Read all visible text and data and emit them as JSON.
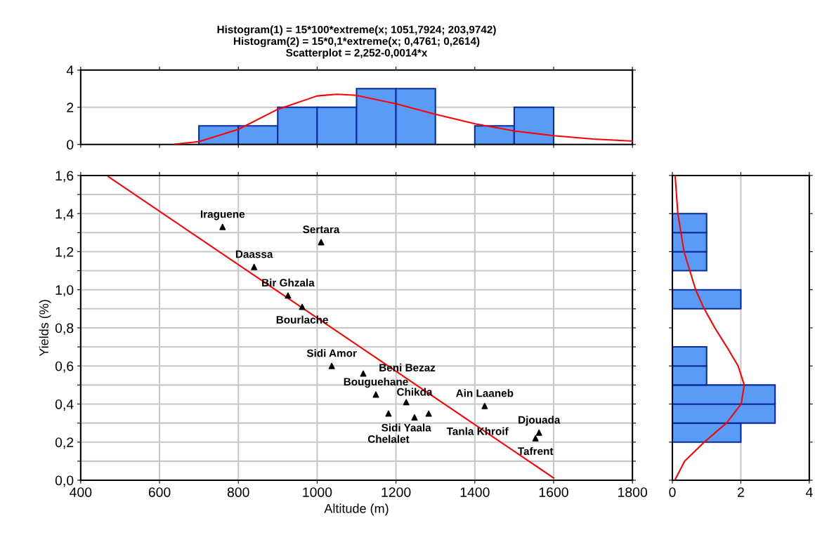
{
  "chart_data": [
    {
      "type": "histogram",
      "title": "Histogram(1) = 15*100*extreme(x; 1051,7924; 203,9742)\nHistogram(2) = 15*0,1*extreme(x; 0,4761; 0,2614)\nScatterplot = 2,252-0,0014*x",
      "bins": [
        700,
        800,
        900,
        1000,
        1100,
        1200,
        1300,
        1400,
        1500,
        1600
      ],
      "series": [
        {
          "color": "#5a9cf5",
          "values": [
            1,
            1,
            2,
            2,
            3,
            3,
            0,
            1,
            2
          ]
        },
        {
          "type": "line",
          "color": "#ff0000",
          "x": [
            640,
            700,
            800,
            900,
            1000,
            1050,
            1100,
            1200,
            1300,
            1400,
            1500,
            1600,
            1700,
            1800
          ],
          "values": [
            0.02,
            0.15,
            0.81,
            1.89,
            2.61,
            2.7,
            2.64,
            2.19,
            1.62,
            1.11,
            0.73,
            0.47,
            0.29,
            0.18
          ]
        }
      ],
      "xlim": [
        400,
        1800
      ],
      "xticks": [
        {
          "value": 400,
          "label": null
        },
        {
          "value": 600,
          "label": null
        },
        {
          "value": 800,
          "label": null
        },
        {
          "value": 1000,
          "label": null
        },
        {
          "value": 1200,
          "label": null
        },
        {
          "value": 1400,
          "label": null
        },
        {
          "value": 1600,
          "label": null
        },
        {
          "value": 1800,
          "label": null
        }
      ],
      "ylim": [
        0,
        4
      ],
      "yticks": [
        0,
        2,
        4
      ],
      "grid": "y",
      "tick_labels": "y"
    },
    {
      "type": "scatter",
      "xlabel": "Altitude (m)",
      "ylabel": "Yields (%)",
      "series": [
        {
          "color": "#000000",
          "x": [
            760,
            1010,
            840,
            926,
            962,
            1037,
            1117,
            1149,
            1226,
            1181,
            1283,
            1247,
            1425,
            1563,
            1554
          ],
          "values": [
            1.33,
            1.25,
            1.12,
            0.97,
            0.91,
            0.6,
            0.56,
            0.45,
            0.41,
            0.35,
            0.35,
            0.33,
            0.39,
            0.25,
            0.22
          ]
        },
        {
          "type": "line",
          "marker": "none",
          "color": "#ff0000",
          "x": [
            470,
            1600
          ],
          "values": [
            1.594,
            0.012
          ]
        }
      ],
      "annotations": [
        {
          "text": "Iraguene",
          "x": 760,
          "y": 1.33
        },
        {
          "text": "Sertara",
          "x": 1010,
          "y": 1.25
        },
        {
          "text": "Daassa",
          "x": 840,
          "y": 1.12
        },
        {
          "text": "Bir Ghzala",
          "x": 926,
          "y": 0.97
        },
        {
          "text": "Bourlache",
          "x": 962,
          "y": 0.91
        },
        {
          "text": "Sidi Amor",
          "x": 1037,
          "y": 0.6
        },
        {
          "text": "Beni Bezaz",
          "x": 1117,
          "y": 0.56
        },
        {
          "text": "Bouguehane",
          "x": 1149,
          "y": 0.45
        },
        {
          "text": "Sidi Yaala",
          "x": 1226,
          "y": 0.41
        },
        {
          "text": "Chelalet",
          "x": 1181,
          "y": 0.35
        },
        {
          "text": "Tanla Khroif",
          "x": 1283,
          "y": 0.35
        },
        {
          "text": "Chikda",
          "x": 1247,
          "y": 0.33
        },
        {
          "text": "Ain Laaneb",
          "x": 1425,
          "y": 0.39
        },
        {
          "text": "Djouada",
          "x": 1563,
          "y": 0.25
        },
        {
          "text": "Tafrent",
          "x": 1554,
          "y": 0.22
        }
      ],
      "marker": "triangle",
      "xlim": [
        400,
        1800
      ],
      "xticks": [
        400,
        600,
        800,
        1000,
        1200,
        1400,
        1600,
        1800
      ],
      "ylim": [
        0,
        1.6
      ],
      "yticks": [
        {
          "value": 0,
          "label": "0,0"
        },
        {
          "value": 0.1,
          "label": null
        },
        {
          "value": 0.2,
          "label": "0,2"
        },
        {
          "value": 0.3,
          "label": null
        },
        {
          "value": 0.4,
          "label": "0,4"
        },
        {
          "value": 0.5,
          "label": null
        },
        {
          "value": 0.6,
          "label": "0,6"
        },
        {
          "value": 0.7,
          "label": null
        },
        {
          "value": 0.8,
          "label": "0,8"
        },
        {
          "value": 0.9,
          "label": null
        },
        {
          "value": 1.0,
          "label": "1,0"
        },
        {
          "value": 1.1,
          "label": null
        },
        {
          "value": 1.2,
          "label": "1,2"
        },
        {
          "value": 1.3,
          "label": null
        },
        {
          "value": 1.4,
          "label": "1,4"
        },
        {
          "value": 1.5,
          "label": null
        },
        {
          "value": 1.6,
          "label": "1,6"
        }
      ],
      "grid": true
    },
    {
      "type": "histogram",
      "orientation": "horizontal",
      "bins": [
        0.2,
        0.3,
        0.4,
        0.5,
        0.6,
        0.7,
        0.8,
        0.9,
        1.0,
        1.1,
        1.2,
        1.3,
        1.4
      ],
      "series": [
        {
          "color": "#5a9cf5",
          "values": [
            2,
            3,
            3,
            1,
            1,
            0,
            0,
            2,
            0,
            1,
            1,
            1
          ]
        },
        {
          "type": "line",
          "color": "#ff0000",
          "x": [
            0,
            0.1,
            0.2,
            0.3,
            0.4,
            0.5,
            0.6,
            0.7,
            0.8,
            0.9,
            1.0,
            1.2,
            1.4,
            1.6
          ],
          "values": [
            0.07,
            0.36,
            0.93,
            1.58,
            2.01,
            2.1,
            1.92,
            1.59,
            1.24,
            0.93,
            0.68,
            0.34,
            0.16,
            0.08
          ]
        }
      ],
      "xlim": [
        0,
        4
      ],
      "xticks": [
        0,
        2,
        4
      ],
      "ylim": [
        0,
        1.6
      ],
      "yticks": [
        {
          "value": 0,
          "label": null
        },
        {
          "value": 0.2,
          "label": null
        },
        {
          "value": 0.4,
          "label": null
        },
        {
          "value": 0.6,
          "label": null
        },
        {
          "value": 0.8,
          "label": null
        },
        {
          "value": 1.0,
          "label": null
        },
        {
          "value": 1.2,
          "label": null
        },
        {
          "value": 1.4,
          "label": null
        },
        {
          "value": 1.6,
          "label": null
        }
      ],
      "grid": "x",
      "tick_labels": "x"
    }
  ]
}
